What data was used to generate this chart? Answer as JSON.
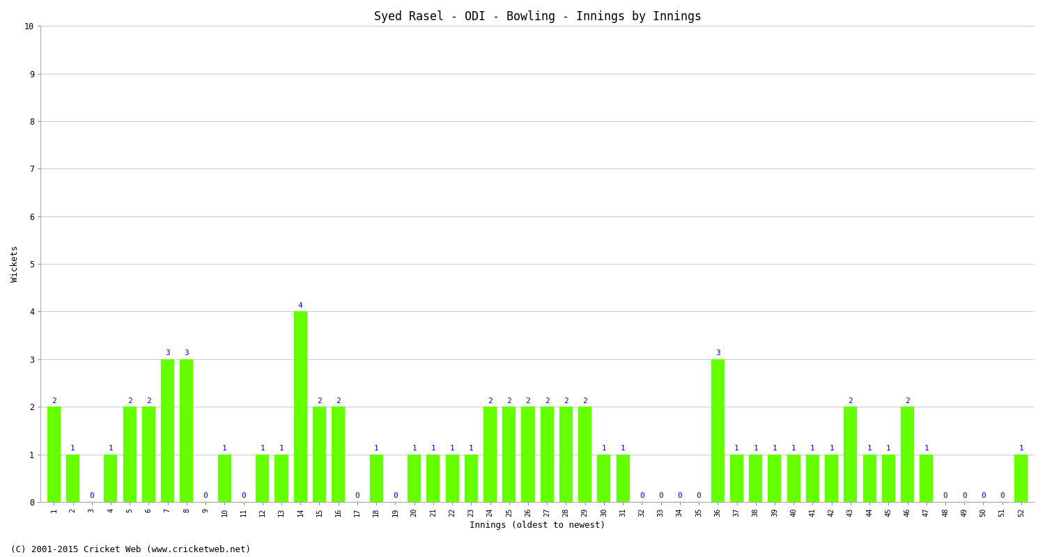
{
  "title": "Syed Rasel - ODI - Bowling - Innings by Innings",
  "xlabel": "Innings (oldest to newest)",
  "ylabel": "Wickets",
  "footer": "(C) 2001-2015 Cricket Web (www.cricketweb.net)",
  "ylim": [
    0,
    10
  ],
  "bar_color": "#66ff00",
  "bar_edge_color": "#66ff00",
  "label_color": "#0000cc",
  "categories": [
    "1",
    "2",
    "3",
    "4",
    "5",
    "6",
    "7",
    "8",
    "9",
    "10",
    "11",
    "12",
    "13",
    "14",
    "15",
    "16",
    "17",
    "18",
    "19",
    "20",
    "21",
    "22",
    "23",
    "24",
    "25",
    "26",
    "27",
    "28",
    "29",
    "30",
    "31",
    "32",
    "33",
    "34",
    "35",
    "36",
    "37",
    "38",
    "39",
    "40",
    "41",
    "42",
    "43",
    "44",
    "45",
    "46",
    "47",
    "48",
    "49",
    "50",
    "51",
    "52"
  ],
  "values": [
    2,
    1,
    0,
    1,
    2,
    2,
    3,
    3,
    0,
    1,
    0,
    1,
    1,
    4,
    2,
    2,
    0,
    1,
    0,
    1,
    1,
    1,
    1,
    2,
    2,
    2,
    2,
    2,
    2,
    1,
    1,
    0,
    0,
    0,
    0,
    3,
    1,
    1,
    1,
    1,
    1,
    1,
    2,
    1,
    1,
    2,
    1,
    0,
    0,
    0,
    0,
    1
  ],
  "title_fontsize": 12,
  "tick_fontsize": 7.5,
  "label_fontsize": 9,
  "value_label_fontsize": 8,
  "footer_fontsize": 9,
  "background_color": "#ffffff",
  "grid_color": "#cccccc"
}
